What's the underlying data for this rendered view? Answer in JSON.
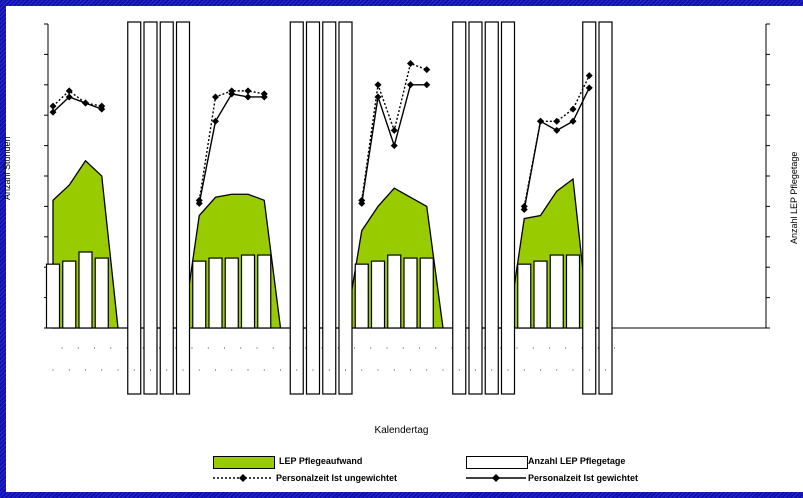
{
  "chart_data": {
    "type": "bar",
    "xlabel": "Kalendertag",
    "ylabel_left": "Anzahl Stunden",
    "ylabel_right": "Anzahl LEP Pflegetage",
    "grid": false,
    "legend_position": "bottom",
    "colors": {
      "area": "#99cc00",
      "bars": "#ffffff",
      "outline": "#000000",
      "frame": "#1a1ab8"
    },
    "y_range": [
      0,
      100
    ],
    "x_count": 35,
    "series": [
      {
        "name": "LEP Pflegeaufwand",
        "type": "area",
        "values": [
          42,
          47,
          55,
          50,
          0,
          0,
          0,
          0,
          0,
          37,
          43,
          44,
          44,
          42,
          0,
          0,
          0,
          0,
          0,
          32,
          40,
          46,
          43,
          40,
          0,
          0,
          0,
          0,
          0,
          36,
          37,
          45,
          49,
          0,
          0
        ]
      },
      {
        "name": "Anzahl LEP Pflegetage",
        "type": "bar",
        "values": [
          21,
          22,
          25,
          23,
          null,
          100,
          100,
          100,
          100,
          22,
          23,
          23,
          24,
          24,
          null,
          100,
          100,
          100,
          100,
          21,
          22,
          24,
          23,
          23,
          null,
          100,
          100,
          100,
          100,
          21,
          22,
          24,
          24,
          100,
          100
        ]
      },
      {
        "name": "Personalzeit Ist ungewichtet",
        "type": "line",
        "values": [
          73,
          78,
          74,
          73,
          null,
          null,
          null,
          null,
          null,
          42,
          76,
          78,
          78,
          77,
          null,
          null,
          null,
          null,
          null,
          42,
          80,
          65,
          87,
          85,
          null,
          null,
          null,
          null,
          null,
          40,
          68,
          68,
          72,
          83,
          null
        ]
      },
      {
        "name": "Personalzeit Ist gewichtet",
        "type": "line",
        "values": [
          71,
          76,
          74,
          72,
          null,
          null,
          null,
          null,
          null,
          41,
          68,
          77,
          76,
          76,
          null,
          null,
          null,
          null,
          null,
          41,
          76,
          60,
          80,
          80,
          null,
          null,
          null,
          null,
          null,
          39,
          68,
          65,
          68,
          79,
          null
        ]
      }
    ],
    "legend": [
      "LEP Pflegeaufwand",
      "Anzahl LEP Pflegetage",
      "Personalzeit Ist ungewichtet",
      "Personalzeit Ist gewichtet"
    ]
  }
}
